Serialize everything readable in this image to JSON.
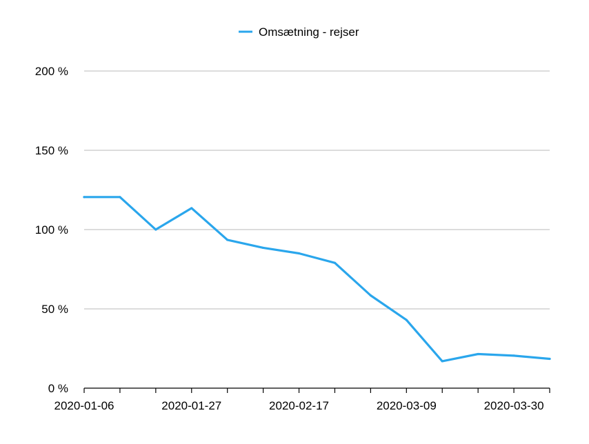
{
  "chart_data": {
    "type": "line",
    "title": "",
    "xlabel": "",
    "ylabel": "",
    "legend_position": "top-center",
    "grid": true,
    "ylim": [
      0,
      200
    ],
    "y_ticks": [
      0,
      50,
      100,
      150,
      200
    ],
    "y_tick_labels": [
      "0 %",
      "50 %",
      "100 %",
      "150 %",
      "200 %"
    ],
    "x_tick_labels": [
      "2020-01-06",
      "2020-01-27",
      "2020-02-17",
      "2020-03-09",
      "2020-03-30"
    ],
    "x_tick_label_index": [
      0,
      3,
      6,
      9,
      12
    ],
    "x": [
      "2020-01-06",
      "2020-01-13",
      "2020-01-20",
      "2020-01-27",
      "2020-02-03",
      "2020-02-10",
      "2020-02-17",
      "2020-02-24",
      "2020-03-02",
      "2020-03-09",
      "2020-03-16",
      "2020-03-23",
      "2020-03-30",
      "2020-04-06"
    ],
    "series": [
      {
        "name": "Omsætning - rejser",
        "color": "#2aa6ec",
        "values": [
          120.5,
          120.5,
          100,
          113.5,
          93.5,
          88.5,
          85,
          79,
          58.5,
          43,
          17,
          21.5,
          20.5,
          18.5
        ]
      }
    ],
    "colors": {
      "grid": "#c8c8c8",
      "axis": "#000000"
    }
  }
}
